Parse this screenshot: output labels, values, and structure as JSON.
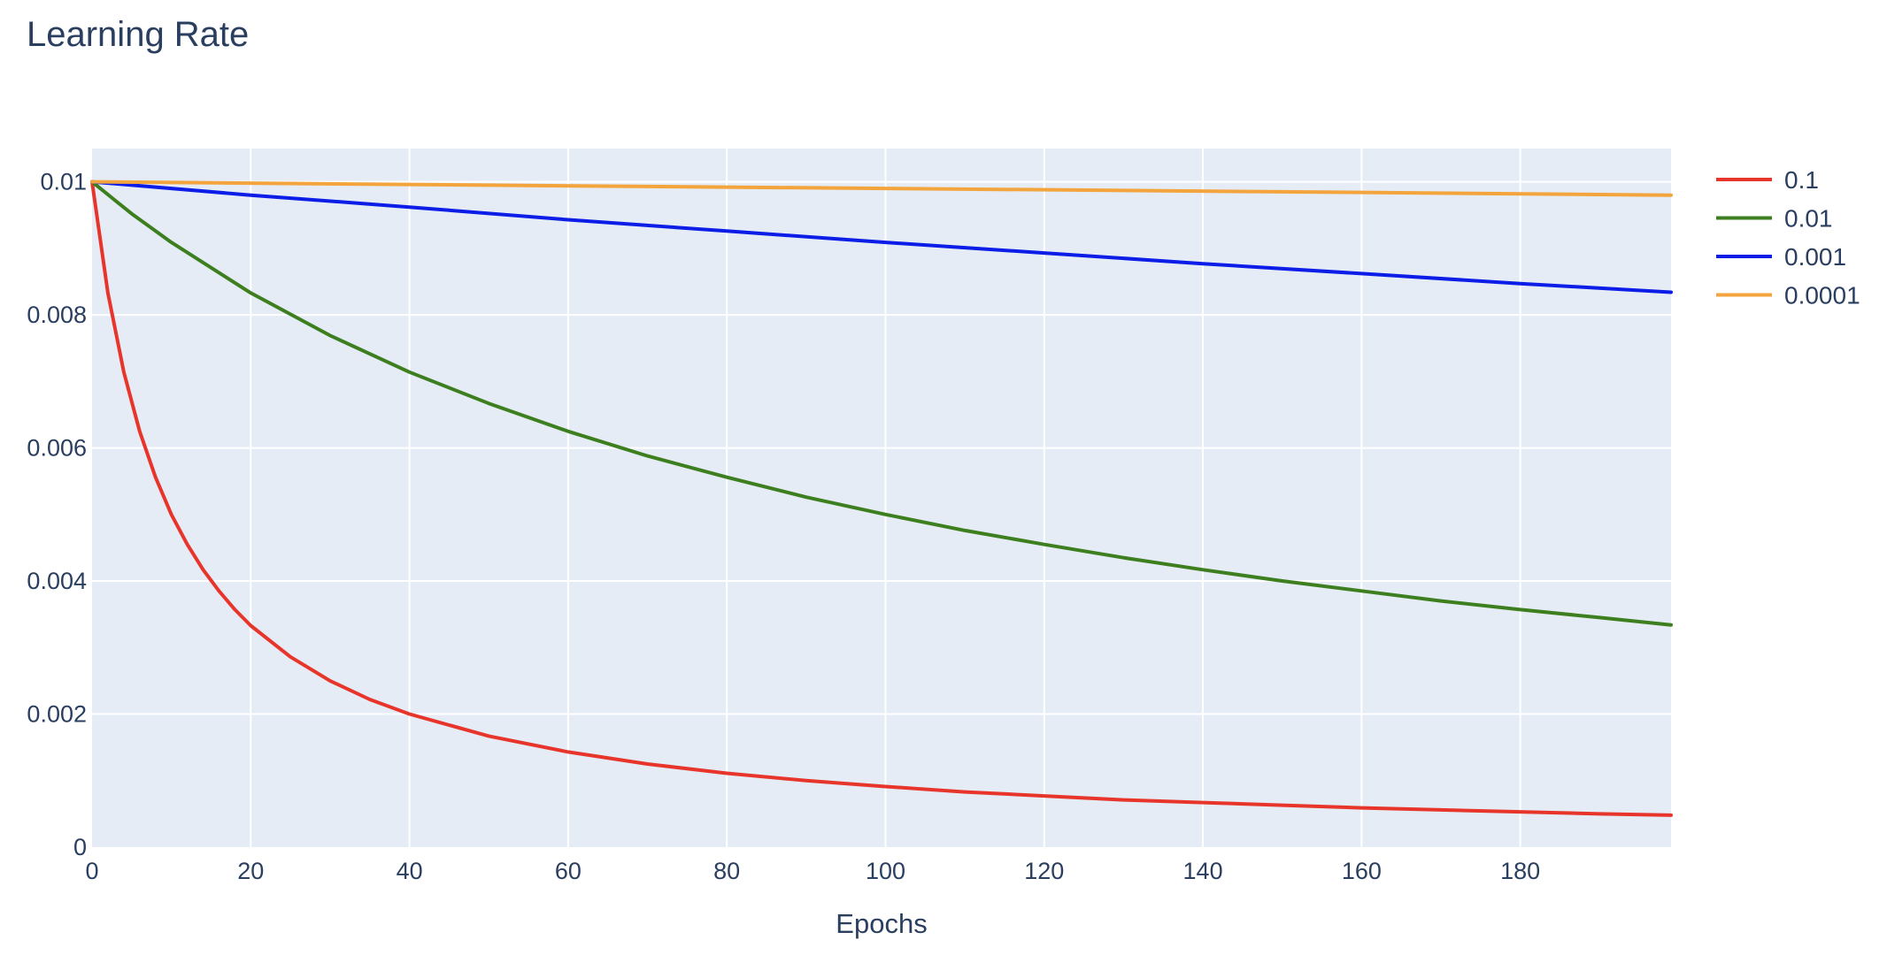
{
  "chart_data": {
    "type": "line",
    "title": "Learning Rate",
    "xlabel": "Epochs",
    "ylabel": "",
    "xlim": [
      0,
      199
    ],
    "ylim": [
      0,
      0.0105
    ],
    "xticks": [
      0,
      20,
      40,
      60,
      80,
      100,
      120,
      140,
      160,
      180
    ],
    "xtick_labels": [
      "0",
      "20",
      "40",
      "60",
      "80",
      "100",
      "120",
      "140",
      "160",
      "180"
    ],
    "yticks": [
      0,
      0.002,
      0.004,
      0.006,
      0.008,
      0.01
    ],
    "ytick_labels": [
      "0",
      "0.002",
      "0.004",
      "0.006",
      "0.008",
      "0.01"
    ],
    "grid": true,
    "legend_position": "top-right",
    "background_color": "#e5ecf6",
    "series": [
      {
        "name": "0.1",
        "color": "#e8352b",
        "x": [
          0,
          2,
          4,
          6,
          8,
          10,
          12,
          14,
          16,
          18,
          20,
          25,
          30,
          35,
          40,
          50,
          60,
          70,
          80,
          90,
          100,
          110,
          120,
          130,
          140,
          150,
          160,
          170,
          180,
          190,
          199
        ],
        "y": [
          0.01,
          0.00833,
          0.00714,
          0.00625,
          0.00556,
          0.005,
          0.00455,
          0.00417,
          0.00385,
          0.00357,
          0.00333,
          0.00286,
          0.0025,
          0.00222,
          0.002,
          0.00167,
          0.00143,
          0.00125,
          0.00111,
          0.001,
          0.00091,
          0.00083,
          0.00077,
          0.00071,
          0.00067,
          0.00063,
          0.00059,
          0.00056,
          0.00053,
          0.0005,
          0.00048
        ]
      },
      {
        "name": "0.01",
        "color": "#3d7f1f",
        "x": [
          0,
          5,
          10,
          20,
          30,
          40,
          50,
          60,
          70,
          80,
          90,
          100,
          110,
          120,
          130,
          140,
          150,
          160,
          170,
          180,
          190,
          199
        ],
        "y": [
          0.01,
          0.00952,
          0.00909,
          0.00833,
          0.00769,
          0.00714,
          0.00667,
          0.00625,
          0.00588,
          0.00556,
          0.00526,
          0.005,
          0.00476,
          0.00455,
          0.00435,
          0.00417,
          0.004,
          0.00385,
          0.0037,
          0.00357,
          0.00345,
          0.00334
        ]
      },
      {
        "name": "0.001",
        "color": "#0c1de8",
        "x": [
          0,
          20,
          40,
          60,
          80,
          100,
          120,
          140,
          160,
          180,
          199
        ],
        "y": [
          0.01,
          0.0098,
          0.00962,
          0.00943,
          0.00926,
          0.00909,
          0.00893,
          0.00877,
          0.00862,
          0.00847,
          0.00834
        ]
      },
      {
        "name": "0.0001",
        "color": "#f3a43c",
        "x": [
          0,
          50,
          100,
          150,
          199
        ],
        "y": [
          0.01,
          0.00995,
          0.0099,
          0.00985,
          0.0098
        ]
      }
    ]
  }
}
